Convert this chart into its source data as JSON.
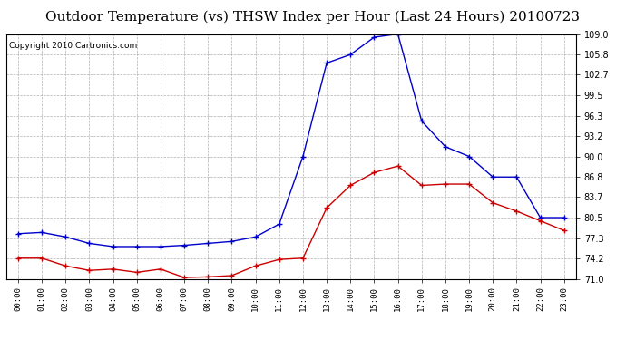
{
  "title": "Outdoor Temperature (vs) THSW Index per Hour (Last 24 Hours) 20100723",
  "copyright": "Copyright 2010 Cartronics.com",
  "hours": [
    0,
    1,
    2,
    3,
    4,
    5,
    6,
    7,
    8,
    9,
    10,
    11,
    12,
    13,
    14,
    15,
    16,
    17,
    18,
    19,
    20,
    21,
    22,
    23
  ],
  "blue_thsw": [
    78.0,
    78.2,
    77.5,
    76.5,
    76.0,
    76.0,
    76.0,
    76.2,
    76.5,
    76.8,
    77.5,
    79.5,
    90.0,
    104.5,
    105.8,
    108.5,
    109.0,
    95.5,
    91.5,
    90.0,
    86.8,
    86.8,
    80.5,
    80.5
  ],
  "red_temp": [
    74.2,
    74.2,
    73.0,
    72.3,
    72.5,
    72.0,
    72.5,
    71.2,
    71.3,
    71.5,
    73.0,
    74.0,
    74.2,
    82.0,
    85.5,
    87.5,
    88.5,
    85.5,
    85.7,
    85.7,
    82.8,
    81.5,
    80.0,
    78.5
  ],
  "ylim": [
    71.0,
    109.0
  ],
  "yticks": [
    71.0,
    74.2,
    77.3,
    80.5,
    83.7,
    86.8,
    90.0,
    93.2,
    96.3,
    99.5,
    102.7,
    105.8,
    109.0
  ],
  "blue_color": "#0000cc",
  "red_color": "#cc0000",
  "bg_color": "#ffffff",
  "grid_color": "#aaaaaa",
  "title_fontsize": 11,
  "copyright_fontsize": 6.5
}
